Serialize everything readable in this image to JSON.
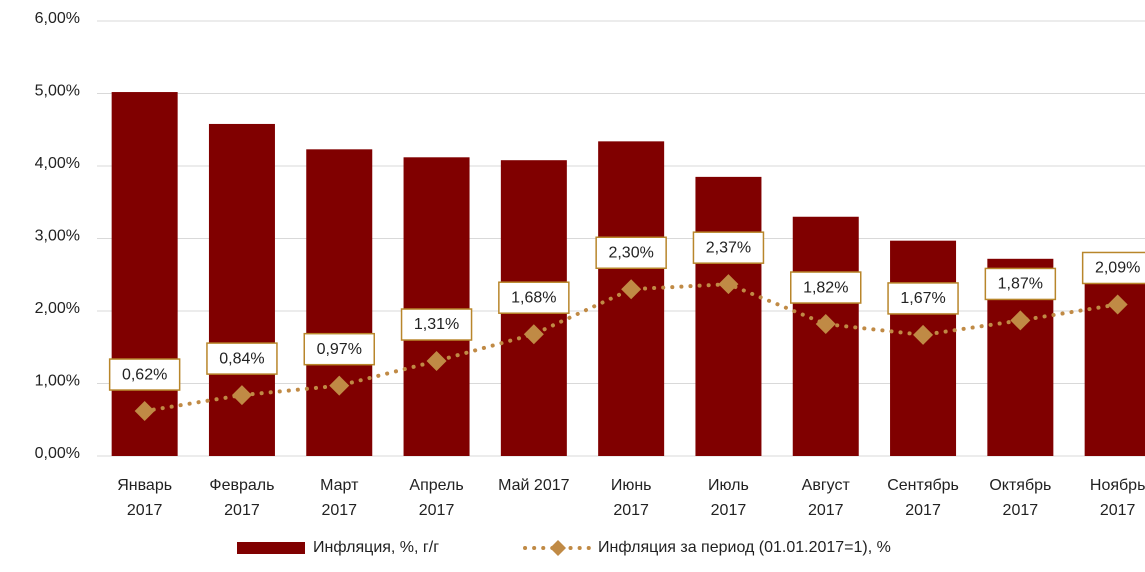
{
  "chart_data": {
    "type": "bar_line",
    "categories": [
      "Январь\n2017",
      "Февраль\n2017",
      "Март\n2017",
      "Апрель\n2017",
      "Май 2017",
      "Июнь\n2017",
      "Июль\n2017",
      "Август\n2017",
      "Сентябрь\n2017",
      "Октябрь\n2017",
      "Ноябрь\n2017"
    ],
    "series": [
      {
        "name": "Инфляция, %, г/г",
        "type": "bar",
        "color": "#800000",
        "values": [
          5.02,
          4.58,
          4.23,
          4.12,
          4.08,
          4.34,
          3.85,
          3.3,
          2.97,
          2.72,
          2.39
        ]
      },
      {
        "name": "Инфляция за период (01.01.2017=1), %",
        "type": "line",
        "color": "#c08a45",
        "values": [
          0.62,
          0.84,
          0.97,
          1.31,
          1.68,
          2.3,
          2.37,
          1.82,
          1.67,
          1.87,
          2.09
        ],
        "value_labels": [
          "0,62%",
          "0,84%",
          "0,97%",
          "1,31%",
          "1,68%",
          "2,30%",
          "2,37%",
          "1,82%",
          "1,67%",
          "1,87%",
          "2,09%"
        ]
      }
    ],
    "ylim": [
      0,
      6
    ],
    "yticks": [
      {
        "value": 0,
        "label": "0,00%"
      },
      {
        "value": 1,
        "label": "1,00%"
      },
      {
        "value": 2,
        "label": "2,00%"
      },
      {
        "value": 3,
        "label": "3,00%"
      },
      {
        "value": 4,
        "label": "4,00%"
      },
      {
        "value": 5,
        "label": "5,00%"
      },
      {
        "value": 6,
        "label": "6,00%"
      }
    ],
    "grid": true,
    "legend": "bottom"
  }
}
